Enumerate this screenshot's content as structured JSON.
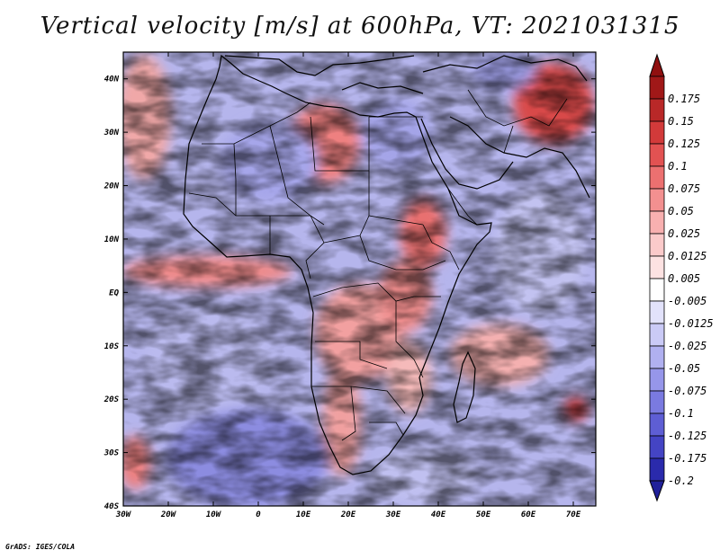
{
  "title": "Vertical velocity [m/s] at 600hPa, VT: 2021031315",
  "credit": "GrADS: IGES/COLA",
  "map": {
    "lon_range": [
      -30,
      75
    ],
    "lat_range": [
      -40,
      45
    ],
    "lat_ticks": [
      {
        "value": 40,
        "label": "40N"
      },
      {
        "value": 30,
        "label": "30N"
      },
      {
        "value": 20,
        "label": "20N"
      },
      {
        "value": 10,
        "label": "10N"
      },
      {
        "value": 0,
        "label": "EQ"
      },
      {
        "value": -10,
        "label": "10S"
      },
      {
        "value": -20,
        "label": "20S"
      },
      {
        "value": -30,
        "label": "30S"
      },
      {
        "value": -40,
        "label": "40S"
      }
    ],
    "lon_ticks": [
      {
        "value": -30,
        "label": "30W"
      },
      {
        "value": -20,
        "label": "20W"
      },
      {
        "value": -10,
        "label": "10W"
      },
      {
        "value": 0,
        "label": "0"
      },
      {
        "value": 10,
        "label": "10E"
      },
      {
        "value": 20,
        "label": "20E"
      },
      {
        "value": 30,
        "label": "30E"
      },
      {
        "value": 40,
        "label": "40E"
      },
      {
        "value": 50,
        "label": "50E"
      },
      {
        "value": 60,
        "label": "60E"
      },
      {
        "value": 70,
        "label": "70E"
      }
    ]
  },
  "colorbar": {
    "levels": [
      {
        "label": "0.175",
        "color": "#a01818"
      },
      {
        "label": "0.15",
        "color": "#b92828"
      },
      {
        "label": "0.125",
        "color": "#d23a3a"
      },
      {
        "label": "0.1",
        "color": "#e25252"
      },
      {
        "label": "0.075",
        "color": "#ec7070"
      },
      {
        "label": "0.05",
        "color": "#f39090"
      },
      {
        "label": "0.025",
        "color": "#f8b0b0"
      },
      {
        "label": "0.0125",
        "color": "#fbcaca"
      },
      {
        "label": "0.005",
        "color": "#fde2e2"
      },
      {
        "label": "-0.005",
        "color": "#ffffff"
      },
      {
        "label": "-0.0125",
        "color": "#e2e2fb"
      },
      {
        "label": "-0.025",
        "color": "#cacaf6"
      },
      {
        "label": "-0.05",
        "color": "#b0b0f0"
      },
      {
        "label": "-0.075",
        "color": "#9696ea"
      },
      {
        "label": "-0.1",
        "color": "#7a7ae0"
      },
      {
        "label": "-0.125",
        "color": "#5e5ed4"
      },
      {
        "label": "-0.175",
        "color": "#4444c4"
      },
      {
        "label": "-0.2",
        "color": "#2a2aac"
      }
    ],
    "top_color": "#901010",
    "bottom_color": "#20209a"
  }
}
